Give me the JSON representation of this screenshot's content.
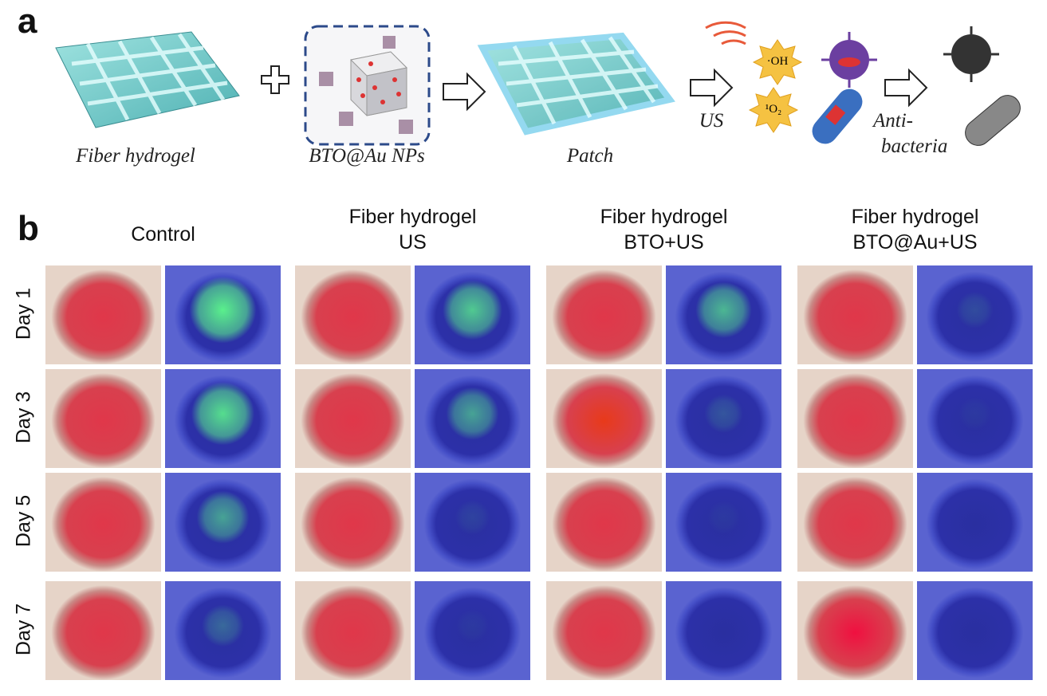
{
  "panel_a": {
    "label": "a",
    "captions": [
      "Fiber hydrogel",
      "BTO@Au NPs",
      "Patch"
    ],
    "us": "US",
    "species": [
      "·OH",
      "¹O₂"
    ],
    "result": [
      "Anti-",
      "bacteria"
    ]
  },
  "panel_b": {
    "label": "b",
    "columns": [
      [
        "Control"
      ],
      [
        "Fiber hydrogel",
        "US"
      ],
      [
        "Fiber hydrogel",
        "BTO+US"
      ],
      [
        "Fiber hydrogel",
        "BTO@Au+US"
      ]
    ],
    "rows": [
      "Day 1",
      "Day 3",
      "Day 5",
      "Day 7"
    ]
  }
}
